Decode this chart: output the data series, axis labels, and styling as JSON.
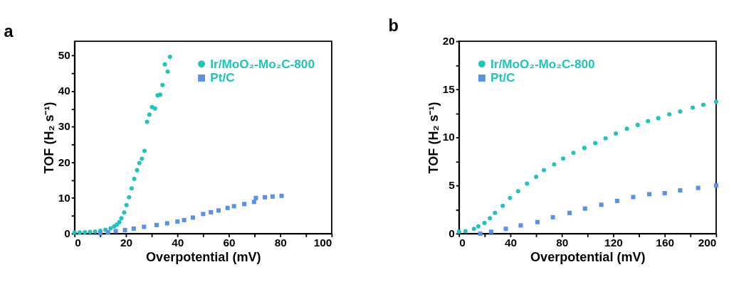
{
  "chart_data": [
    {
      "type": "scatter",
      "title": "a",
      "xlabel": "Overpotential (mV)",
      "ylabel": "TOF (H₂ s⁻¹)",
      "xlim": [
        0,
        100
      ],
      "ylim": [
        0,
        54
      ],
      "xticks": [
        0,
        {
          "value": 10,
          "label": null
        },
        20,
        {
          "value": 30,
          "label": null
        },
        40,
        {
          "value": 50,
          "label": null
        },
        60,
        {
          "value": 70,
          "label": null
        },
        80,
        {
          "value": 90,
          "label": null
        },
        100
      ],
      "yticks": [
        0,
        {
          "value": 5,
          "label": null
        },
        10,
        {
          "value": 15,
          "label": null
        },
        20,
        {
          "value": 25,
          "label": null
        },
        30,
        {
          "value": 35,
          "label": null
        },
        40,
        {
          "value": 45,
          "label": null
        },
        50
      ],
      "grid": false,
      "legend": "top right",
      "series": [
        {
          "name": "Ir/MoO₂-Mo₂C-800",
          "color": "#1fc4bb",
          "marker": "circle",
          "x": [
            0,
            2,
            4,
            6,
            8,
            10,
            12,
            14,
            15.4,
            16.4,
            17.4,
            18.2,
            19.3,
            20.2,
            21.2,
            22.2,
            23.2,
            24.3,
            25.2,
            26.2,
            27.2,
            28.2,
            29.1,
            30.1,
            31.3,
            32.3,
            33.3,
            34.2,
            35.1,
            36.2,
            37.1
          ],
          "values": [
            0.3,
            0.35,
            0.4,
            0.5,
            0.6,
            0.8,
            1.1,
            1.5,
            2.0,
            2.5,
            3.2,
            4.3,
            5.9,
            8.0,
            10.2,
            12.7,
            15.4,
            17.8,
            19.8,
            21.0,
            23.2,
            31.4,
            33.4,
            35.5,
            35.1,
            38.8,
            39.0,
            41.7,
            47.5,
            45.5,
            49.6
          ]
        },
        {
          "name": "Pt/C",
          "color": "#5b8fe8",
          "marker": "square",
          "x": [
            10,
            13,
            16,
            19.6,
            23,
            27,
            31.9,
            36,
            40,
            42.6,
            46,
            50,
            53,
            56,
            59.5,
            62,
            66,
            69.8,
            70.5,
            74,
            77,
            80.5
          ],
          "values": [
            0.1,
            0.4,
            0.7,
            1.0,
            1.4,
            1.9,
            2.4,
            2.9,
            3.4,
            3.8,
            4.5,
            5.5,
            6.0,
            6.5,
            7.2,
            7.7,
            8.3,
            8.9,
            10.0,
            10.2,
            10.4,
            10.6
          ]
        }
      ]
    },
    {
      "type": "scatter",
      "title": "b",
      "xlabel": "Overpotential (mV)",
      "ylabel": "TOF (H₂ s⁻¹)",
      "xlim": [
        0,
        200
      ],
      "ylim": [
        0,
        20
      ],
      "xticks": [
        0,
        {
          "value": 20,
          "label": null
        },
        40,
        {
          "value": 60,
          "label": null
        },
        80,
        {
          "value": 100,
          "label": null
        },
        120,
        {
          "value": 140,
          "label": null
        },
        160,
        {
          "value": 180,
          "label": null
        },
        200
      ],
      "yticks": [
        0,
        {
          "value": 2.5,
          "label": null
        },
        5,
        {
          "value": 7.5,
          "label": null
        },
        10,
        {
          "value": 12.5,
          "label": null
        },
        15,
        {
          "value": 17.5,
          "label": null
        },
        20
      ],
      "grid": false,
      "legend": "top left",
      "series": [
        {
          "name": "Ir/MoO₂-Mo₂C-800",
          "color": "#1fc4bb",
          "marker": "circle",
          "x": [
            0,
            5,
            11.6,
            15,
            19.8,
            24,
            28,
            34,
            39.7,
            46,
            52.9,
            60,
            66,
            74,
            81,
            89,
            97.5,
            106,
            114,
            122,
            130.6,
            139,
            147,
            155,
            163.6,
            172,
            181.8,
            190,
            200
          ],
          "values": [
            0.2,
            0.25,
            0.5,
            0.75,
            1.1,
            1.6,
            2.15,
            2.9,
            3.7,
            4.4,
            5.2,
            5.9,
            6.6,
            7.2,
            7.8,
            8.4,
            8.9,
            9.4,
            9.9,
            10.4,
            10.9,
            11.3,
            11.7,
            12.0,
            12.4,
            12.7,
            13.1,
            13.4,
            13.7
          ]
        },
        {
          "name": "Pt/C",
          "color": "#5b8fe8",
          "marker": "square",
          "x": [
            16.5,
            25,
            36.4,
            48,
            61,
            73,
            86,
            98,
            110.7,
            123,
            135.5,
            148,
            160,
            172,
            186,
            200
          ],
          "values": [
            0,
            0.2,
            0.5,
            0.85,
            1.2,
            1.7,
            2.15,
            2.6,
            3.0,
            3.4,
            3.8,
            4.1,
            4.2,
            4.5,
            4.75,
            5.0
          ]
        }
      ]
    }
  ]
}
